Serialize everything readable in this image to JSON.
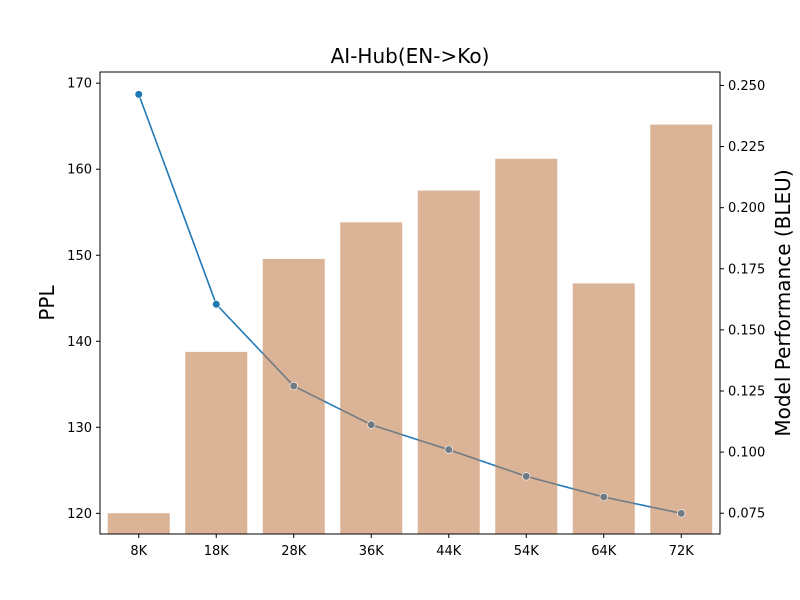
{
  "chart_data": {
    "type": "bar+line",
    "title": "AI-Hub(EN->Ko)",
    "categories": [
      "8K",
      "18K",
      "28K",
      "36K",
      "44K",
      "54K",
      "64K",
      "72K"
    ],
    "bar_series": {
      "axis": "right",
      "ylabel": "Model Performance (BLEU)",
      "values": [
        0.075,
        0.141,
        0.179,
        0.194,
        0.207,
        0.22,
        0.169,
        0.234
      ],
      "ylim": [
        0.0665,
        0.2555
      ],
      "yticks": [
        0.075,
        0.1,
        0.125,
        0.15,
        0.175,
        0.2,
        0.225,
        0.25
      ],
      "ytick_labels": [
        "0.075",
        "0.100",
        "0.125",
        "0.150",
        "0.175",
        "0.200",
        "0.225",
        "0.250"
      ],
      "color": "#dbb397"
    },
    "line_series": {
      "axis": "left",
      "ylabel": "PPL",
      "values": [
        168.7,
        144.3,
        134.8,
        130.3,
        127.4,
        124.3,
        121.9,
        120.0
      ],
      "ylim": [
        117.6,
        171.3
      ],
      "yticks": [
        120,
        130,
        140,
        150,
        160,
        170
      ],
      "ytick_labels": [
        "120",
        "130",
        "140",
        "150",
        "160",
        "170"
      ],
      "color": "#1f77b4",
      "marker_color_over_bars": "#6f7a82"
    }
  }
}
